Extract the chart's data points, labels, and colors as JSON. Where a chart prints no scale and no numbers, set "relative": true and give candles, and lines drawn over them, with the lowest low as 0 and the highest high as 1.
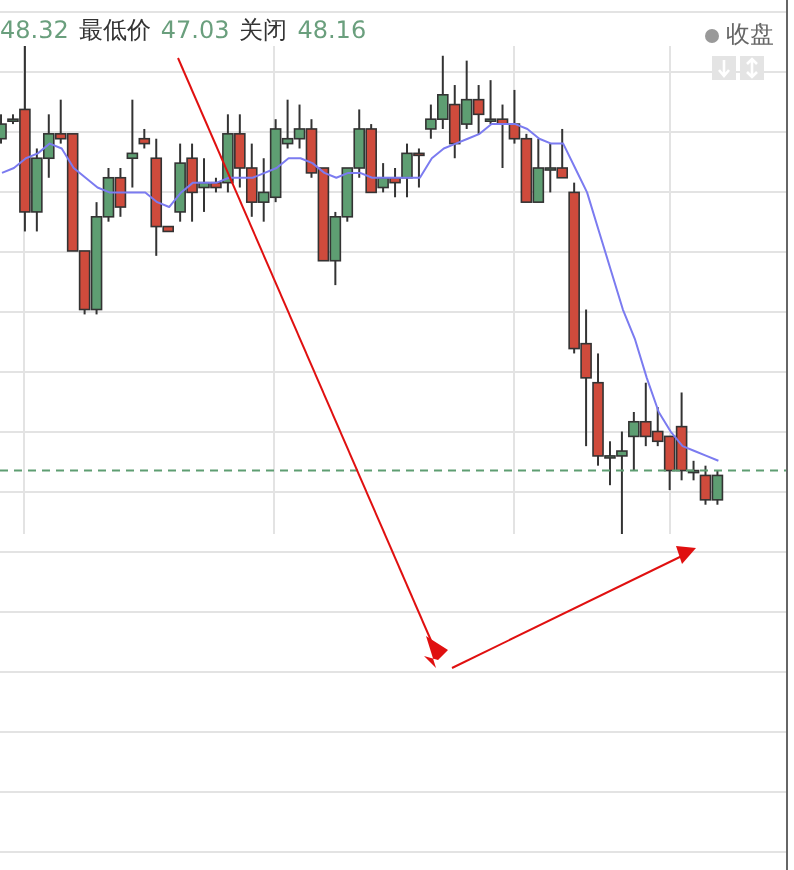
{
  "chart_data": {
    "type": "candlestick",
    "relative": true,
    "grid": true,
    "legend": false,
    "annotations": [
      "48.32",
      "最低价",
      "47.03",
      "关闭",
      "48.16",
      "收盘"
    ],
    "categories": [
      null,
      null,
      null,
      null,
      null,
      null,
      null,
      null,
      null,
      null,
      null,
      null,
      null,
      null,
      null,
      null,
      null,
      null,
      null,
      null,
      null,
      null,
      null,
      null,
      null,
      null,
      null,
      null,
      null,
      null,
      null,
      null,
      null,
      null,
      null,
      null,
      null,
      null,
      null,
      null,
      null,
      null,
      null,
      null,
      null,
      null,
      null,
      null,
      null,
      null,
      null,
      null,
      null,
      null,
      null,
      null,
      null,
      null,
      null,
      null,
      null
    ],
    "ref_lines": [
      {
        "axis": "y",
        "value": 0.13,
        "color": "#5e9e72",
        "line_style": "dashed"
      }
    ],
    "series": [
      {
        "type": "candlestick",
        "colors": [
          "#5e9e72",
          "#5e9e72",
          "#cf4b3c",
          "#5e9e72",
          "#5e9e72",
          "#cf4b3c",
          "#cf4b3c",
          "#cf4b3c",
          "#5e9e72",
          "#5e9e72",
          "#cf4b3c",
          "#5e9e72",
          "#cf4b3c",
          "#cf4b3c",
          "#cf4b3c",
          "#5e9e72",
          "#cf4b3c",
          "#5e9e72",
          "#cf4b3c",
          "#5e9e72",
          "#cf4b3c",
          "#cf4b3c",
          "#5e9e72",
          "#5e9e72",
          "#5e9e72",
          "#5e9e72",
          "#cf4b3c",
          "#cf4b3c",
          "#5e9e72",
          "#5e9e72",
          "#5e9e72",
          "#cf4b3c",
          "#5e9e72",
          "#cf4b3c",
          "#5e9e72",
          "#cf4b3c",
          "#5e9e72",
          "#5e9e72",
          "#cf4b3c",
          "#5e9e72",
          "#cf4b3c",
          "#5e9e72",
          "#cf4b3c",
          "#cf4b3c",
          "#cf4b3c",
          "#5e9e72",
          "#5e9e72",
          "#cf4b3c",
          "#cf4b3c",
          "#cf4b3c",
          "#cf4b3c",
          "#5e9e72",
          "#5e9e72",
          "#5e9e72",
          "#cf4b3c",
          "#cf4b3c",
          "#cf4b3c",
          "#cf4b3c",
          "#5e9e72",
          "#cf4b3c",
          "#5e9e72"
        ],
        "ohlc": [
          [
            0.81,
            0.86,
            0.8,
            0.84
          ],
          [
            0.85,
            0.86,
            0.84,
            0.85
          ],
          [
            0.87,
            1,
            0.62,
            0.66
          ],
          [
            0.66,
            0.79,
            0.62,
            0.77
          ],
          [
            0.77,
            0.86,
            0.73,
            0.82
          ],
          [
            0.82,
            0.89,
            0.8,
            0.81
          ],
          [
            0.82,
            0.82,
            0.58,
            0.58
          ],
          [
            0.58,
            0.58,
            0.45,
            0.46
          ],
          [
            0.46,
            0.68,
            0.45,
            0.65
          ],
          [
            0.65,
            0.75,
            0.64,
            0.73
          ],
          [
            0.73,
            0.75,
            0.65,
            0.67
          ],
          [
            0.77,
            0.89,
            0.71,
            0.78
          ],
          [
            0.81,
            0.83,
            0.79,
            0.8
          ],
          [
            0.77,
            0.81,
            0.57,
            0.63
          ],
          [
            0.63,
            0.63,
            0.62,
            0.62
          ],
          [
            0.66,
            0.8,
            0.64,
            0.76
          ],
          [
            0.77,
            0.8,
            0.64,
            0.7
          ],
          [
            0.71,
            0.77,
            0.66,
            0.72
          ],
          [
            0.72,
            0.73,
            0.7,
            0.71
          ],
          [
            0.72,
            0.86,
            0.7,
            0.82
          ],
          [
            0.82,
            0.86,
            0.71,
            0.75
          ],
          [
            0.75,
            0.8,
            0.65,
            0.68
          ],
          [
            0.68,
            0.77,
            0.64,
            0.7
          ],
          [
            0.69,
            0.85,
            0.68,
            0.83
          ],
          [
            0.8,
            0.89,
            0.79,
            0.81
          ],
          [
            0.81,
            0.88,
            0.79,
            0.83
          ],
          [
            0.83,
            0.85,
            0.73,
            0.74
          ],
          [
            0.75,
            0.75,
            0.56,
            0.56
          ],
          [
            0.56,
            0.66,
            0.51,
            0.65
          ],
          [
            0.65,
            0.75,
            0.64,
            0.75
          ],
          [
            0.75,
            0.87,
            0.73,
            0.83
          ],
          [
            0.83,
            0.84,
            0.7,
            0.7
          ],
          [
            0.71,
            0.76,
            0.7,
            0.73
          ],
          [
            0.73,
            0.75,
            0.69,
            0.72
          ],
          [
            0.73,
            0.8,
            0.69,
            0.78
          ],
          [
            0.78,
            0.79,
            0.71,
            0.78
          ],
          [
            0.83,
            0.88,
            0.81,
            0.85
          ],
          [
            0.85,
            0.98,
            0.83,
            0.9
          ],
          [
            0.88,
            0.92,
            0.77,
            0.8
          ],
          [
            0.84,
            0.97,
            0.83,
            0.89
          ],
          [
            0.89,
            0.92,
            0.82,
            0.86
          ],
          [
            0.85,
            0.93,
            0.84,
            0.85
          ],
          [
            0.85,
            0.88,
            0.75,
            0.84
          ],
          [
            0.84,
            0.91,
            0.8,
            0.81
          ],
          [
            0.81,
            0.82,
            0.68,
            0.68
          ],
          [
            0.68,
            0.81,
            0.68,
            0.75
          ],
          [
            0.75,
            0.8,
            0.7,
            0.75
          ],
          [
            0.75,
            0.83,
            0.73,
            0.73
          ],
          [
            0.7,
            0.72,
            0.37,
            0.38
          ],
          [
            0.39,
            0.46,
            0.18,
            0.32
          ],
          [
            0.31,
            0.37,
            0.14,
            0.16
          ],
          [
            0.16,
            0.19,
            0.1,
            0.16
          ],
          [
            0.16,
            0.21,
            0,
            0.17
          ],
          [
            0.2,
            0.25,
            0.13,
            0.23
          ],
          [
            0.23,
            0.31,
            0.18,
            0.2
          ],
          [
            0.21,
            0.26,
            0.18,
            0.19
          ],
          [
            0.2,
            0.2,
            0.09,
            0.13
          ],
          [
            0.22,
            0.29,
            0.11,
            0.13
          ],
          [
            0.13,
            0.15,
            0.11,
            0.13
          ],
          [
            0.12,
            0.14,
            0.06,
            0.07
          ],
          [
            0.07,
            0.13,
            0.06,
            0.12
          ]
        ]
      },
      {
        "type": "line",
        "color": "#7b7bf0",
        "values": [
          0.74,
          0.75,
          0.77,
          0.78,
          0.8,
          0.79,
          0.75,
          0.73,
          0.71,
          0.7,
          0.7,
          0.7,
          0.7,
          0.68,
          0.67,
          0.7,
          0.72,
          0.72,
          0.72,
          0.73,
          0.73,
          0.73,
          0.74,
          0.75,
          0.77,
          0.77,
          0.76,
          0.74,
          0.73,
          0.74,
          0.74,
          0.73,
          0.73,
          0.73,
          0.73,
          0.73,
          0.77,
          0.79,
          0.8,
          0.81,
          0.82,
          0.84,
          0.84,
          0.84,
          0.83,
          0.81,
          0.8,
          0.8,
          0.75,
          0.7,
          0.62,
          0.54,
          0.46,
          0.4,
          0.32,
          0.25,
          0.21,
          0.18,
          0.17,
          0.16,
          0.15
        ]
      }
    ]
  }
}
